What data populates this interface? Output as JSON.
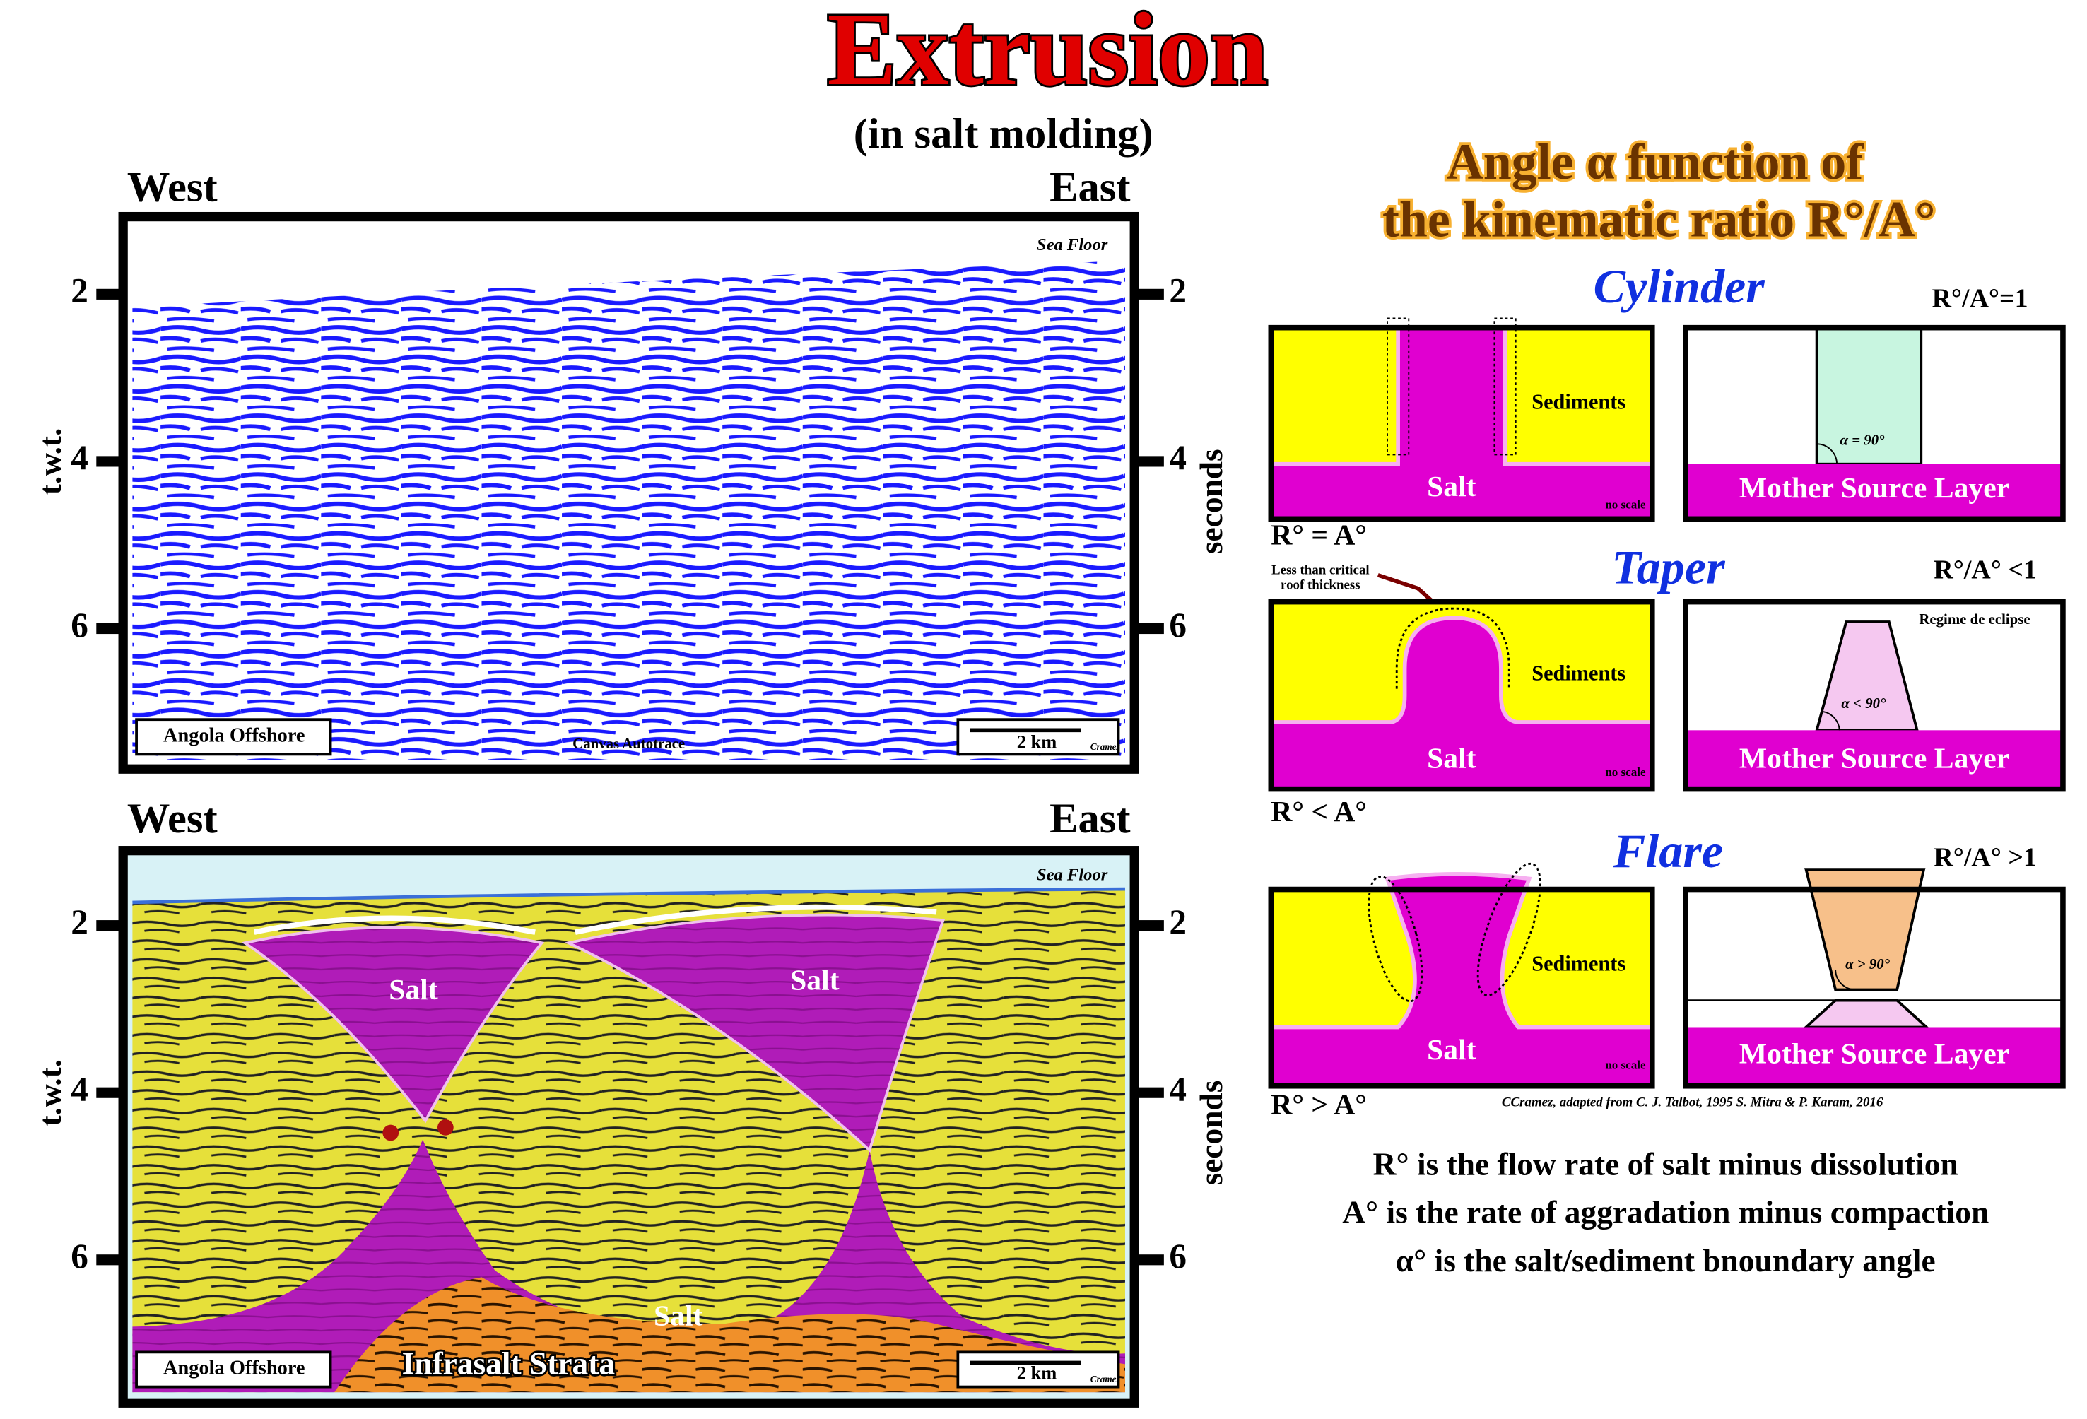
{
  "header": {
    "title": "Extrusion",
    "subtitle": "(in salt molding)"
  },
  "top_section": {
    "west": "West",
    "east": "East",
    "ticks": [
      "2",
      "4",
      "6"
    ],
    "left_axis": "t.w.t.",
    "right_axis": "seconds",
    "sea_floor": "Sea Floor",
    "location": "Angola Offshore",
    "scale": "2 km",
    "scale_credit": "Cramez",
    "watermark": "Canvas Autotrace"
  },
  "bottom_section": {
    "west": "West",
    "east": "East",
    "ticks": [
      "2",
      "4",
      "6"
    ],
    "left_axis": "t.w.t.",
    "right_axis": "seconds",
    "sea_floor": "Sea Floor",
    "salt_labels": [
      "Salt",
      "Salt",
      "Salt"
    ],
    "infrasalt": "Infrasalt Strata",
    "location": "Angola Offshore",
    "scale": "2 km",
    "scale_credit": "Cramez"
  },
  "models": {
    "heading": [
      "Angle α function of",
      "the kinematic ratio R°/A°"
    ],
    "cylinder": {
      "title": "Cylinder",
      "ratio": "R°/A°=1",
      "sediments": "Sediments",
      "salt": "Salt",
      "no_scale": "no scale",
      "angle": "α = 90°",
      "source": "Mother Source Layer",
      "relation": "R° = A°"
    },
    "taper": {
      "title": "Taper",
      "ratio": "R°/A° <1",
      "note": [
        "Less than critical",
        "roof thickness"
      ],
      "sediments": "Sediments",
      "salt": "Salt",
      "no_scale": "no scale",
      "regime": "Regime de eclipse",
      "angle": "α < 90°",
      "source": "Mother Source Layer",
      "relation": "R° < A°"
    },
    "flare": {
      "title": "Flare",
      "ratio": "R°/A° >1",
      "sediments": "Sediments",
      "salt": "Salt",
      "no_scale": "no scale",
      "angle": "α > 90°",
      "source": "Mother Source Layer",
      "relation": "R° > A°"
    },
    "credit": "CCramez, adapted from C. J. Talbot, 1995 S. Mitra & P. Karam, 2016"
  },
  "legend": [
    "R° is the flow rate of salt minus dissolution",
    "A° is the rate of aggradation minus compaction",
    "α° is the salt/sediment  bnoundary angle"
  ]
}
